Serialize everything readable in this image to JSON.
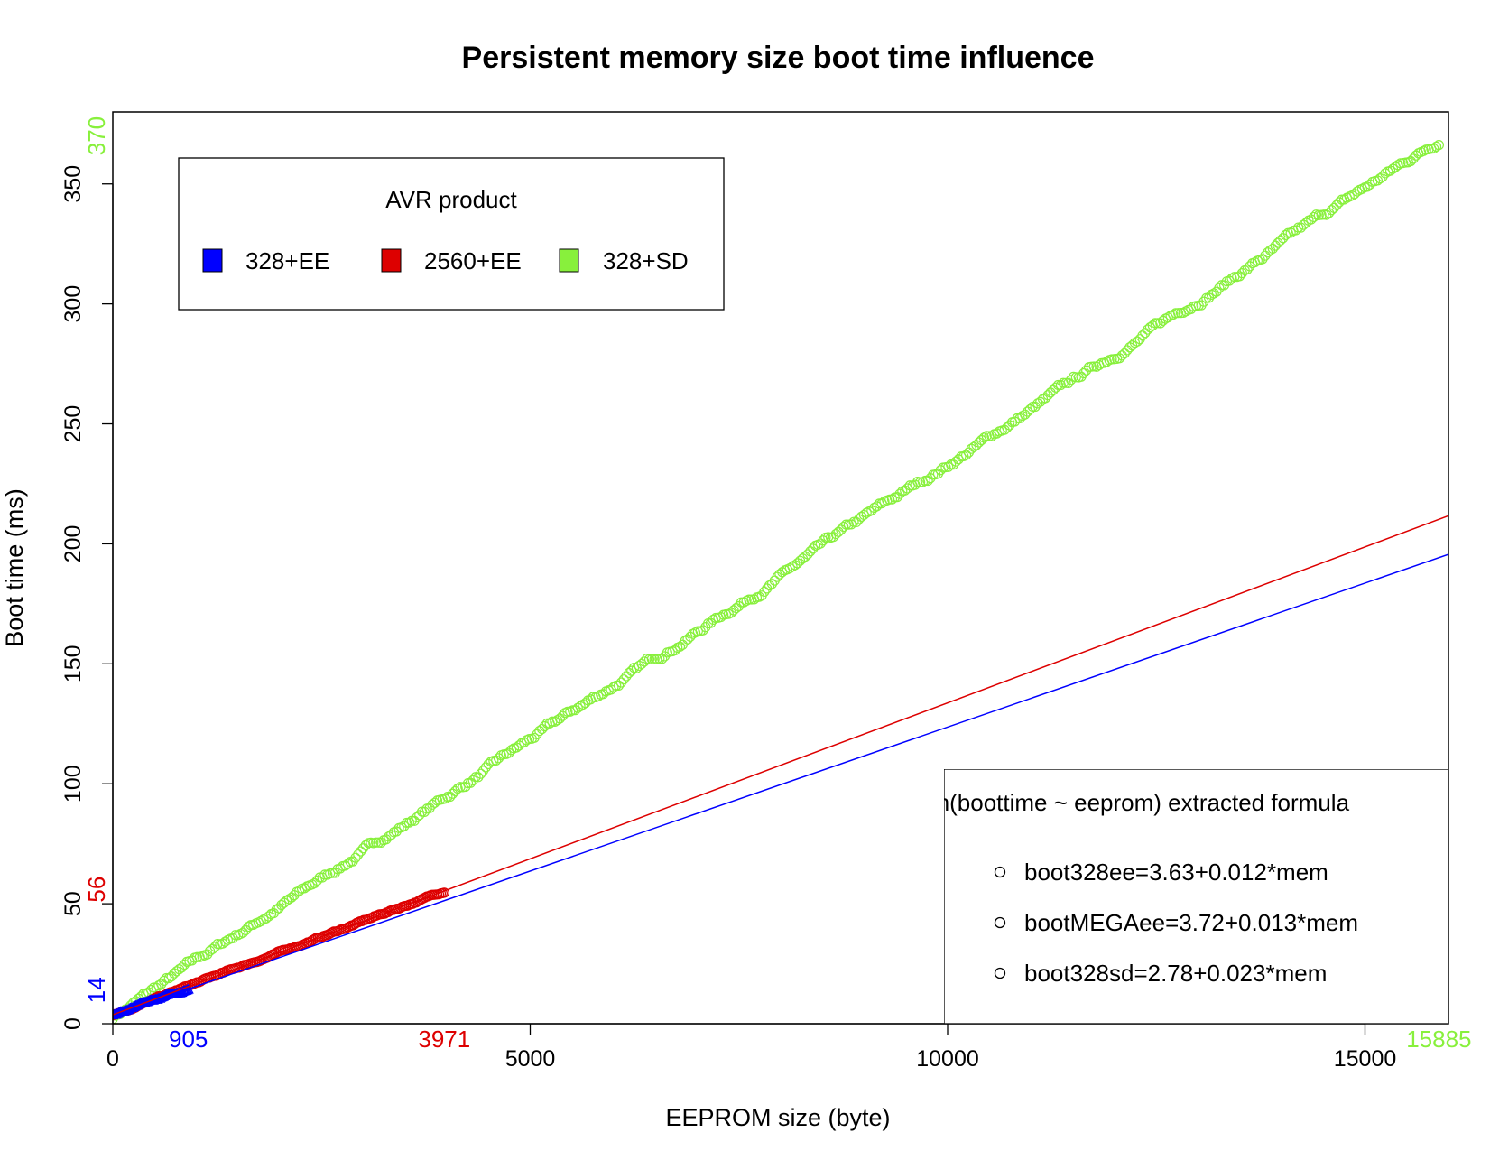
{
  "chart_data": {
    "type": "scatter",
    "title": "Persistent memory size boot time influence",
    "xlabel": "EEPROM size (byte)",
    "ylabel": "Boot time (ms)",
    "xlim": [
      0,
      16000
    ],
    "ylim": [
      0,
      380
    ],
    "xticks": [
      0,
      5000,
      10000,
      15000
    ],
    "yticks": [
      0,
      50,
      100,
      150,
      200,
      250,
      300,
      350
    ],
    "xtick_labels": [
      "0",
      "5000",
      "10000",
      "15000"
    ],
    "ytick_labels": [
      "0",
      "50",
      "100",
      "150",
      "200",
      "250",
      "300",
      "350"
    ],
    "grid": false,
    "legend": {
      "title": "AVR product",
      "placement": "top-left",
      "entries": [
        "328+EE",
        "2560+EE",
        "328+SD"
      ]
    },
    "series": [
      {
        "name": "328+EE",
        "color": "#0000ff",
        "marker": "triangle",
        "x_range": [
          0,
          905
        ],
        "intercept": 3.63,
        "slope": 0.012,
        "max_x_label": "905",
        "max_y_label": "14",
        "fit_line_xlim": [
          0,
          16000
        ]
      },
      {
        "name": "2560+EE",
        "color": "#dd0000",
        "marker": "circle",
        "x_range": [
          0,
          3971
        ],
        "intercept": 3.72,
        "slope": 0.013,
        "max_x_label": "3971",
        "max_y_label": "56",
        "fit_line_xlim": [
          0,
          16000
        ]
      },
      {
        "name": "328+SD",
        "color": "#88f03c",
        "marker": "circle",
        "x_range": [
          0,
          15885
        ],
        "intercept": 2.78,
        "slope": 0.023,
        "max_x_label": "15885",
        "max_y_label": "370",
        "fit_line_xlim": null
      }
    ],
    "formula_box": {
      "title": "Lm(boottime ~ eeprom) extracted formula",
      "entries": [
        "boot328ee=3.63+0.012*mem",
        "bootMEGAee=3.72+0.013*mem",
        "boot328sd=2.78+0.023*mem"
      ]
    }
  }
}
